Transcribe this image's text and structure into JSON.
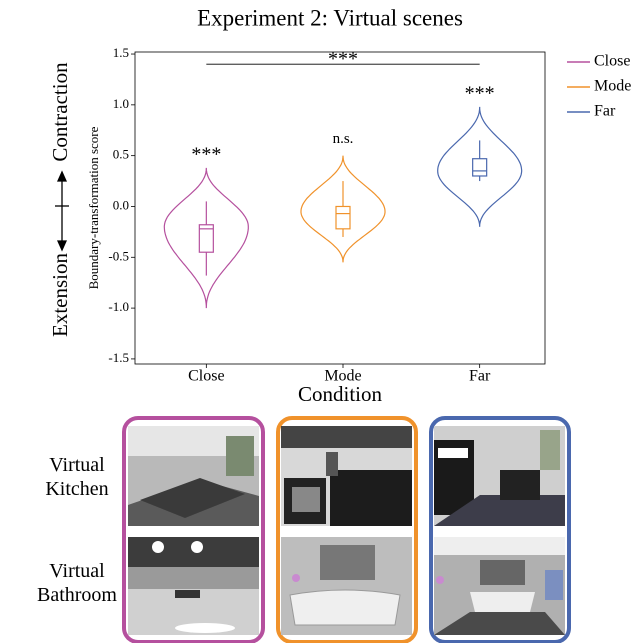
{
  "chart_data": {
    "type": "violin",
    "title": "Experiment 2: Virtual scenes",
    "x_label": "Condition",
    "y_label": "Boundary-transformation score",
    "side_labels": [
      "Extension",
      "Contraction"
    ],
    "categories": [
      "Close",
      "Mode",
      "Far"
    ],
    "series": [
      {
        "name": "Close",
        "color": "#b5509e",
        "min": -1.0,
        "max": 0.38,
        "peak": -0.2,
        "whisker_low": -0.68,
        "q1": -0.45,
        "median": -0.22,
        "q3": -0.18,
        "whisker_high": 0.05,
        "annotation": "***"
      },
      {
        "name": "Mode",
        "color": "#f0922b",
        "min": -0.55,
        "max": 0.5,
        "peak": -0.05,
        "whisker_low": -0.3,
        "q1": -0.22,
        "median": -0.07,
        "q3": 0.0,
        "whisker_high": 0.25,
        "annotation": "n.s."
      },
      {
        "name": "Far",
        "color": "#4a68ae",
        "min": -0.2,
        "max": 0.98,
        "peak": 0.35,
        "whisker_low": 0.25,
        "q1": 0.3,
        "median": 0.35,
        "q3": 0.47,
        "whisker_high": 0.65,
        "annotation": "***"
      }
    ],
    "bracket": {
      "y": 1.4,
      "label": "***"
    },
    "ylim": [
      -1.55,
      1.52
    ],
    "yticks": [
      1.5,
      {
        "value": 1.0,
        "label": "1.0"
      },
      0.5,
      {
        "value": 0.0,
        "label": "0.0"
      },
      -0.5,
      {
        "value": -1.0,
        "label": "-1.0"
      },
      -1.5
    ],
    "legend": "top-right"
  },
  "image_rows": [
    "Virtual\nKitchen",
    "Virtual\nBathroom"
  ]
}
